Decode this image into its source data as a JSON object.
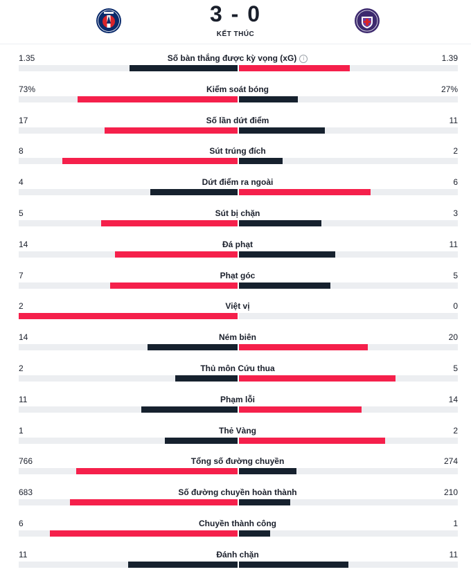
{
  "match": {
    "score": "3 - 0",
    "status": "KẾT THÚC"
  },
  "colors": {
    "winner": "#f5204b",
    "loser": "#16212e",
    "track": "#eceef1"
  },
  "stats": [
    {
      "label": "Số bàn thắng được kỳ vọng (xG)",
      "home": "1.35",
      "away": "1.39",
      "home_value": 1.35,
      "away_value": 1.39,
      "info": true
    },
    {
      "label": "Kiểm soát bóng",
      "home": "73%",
      "away": "27%",
      "home_value": 73,
      "away_value": 27
    },
    {
      "label": "Số lần dứt điểm",
      "home": "17",
      "away": "11",
      "home_value": 17,
      "away_value": 11
    },
    {
      "label": "Sút trúng đích",
      "home": "8",
      "away": "2",
      "home_value": 8,
      "away_value": 2
    },
    {
      "label": "Dứt điểm ra ngoài",
      "home": "4",
      "away": "6",
      "home_value": 4,
      "away_value": 6
    },
    {
      "label": "Sút bị chặn",
      "home": "5",
      "away": "3",
      "home_value": 5,
      "away_value": 3
    },
    {
      "label": "Đá phạt",
      "home": "14",
      "away": "11",
      "home_value": 14,
      "away_value": 11
    },
    {
      "label": "Phạt góc",
      "home": "7",
      "away": "5",
      "home_value": 7,
      "away_value": 5
    },
    {
      "label": "Việt vị",
      "home": "2",
      "away": "0",
      "home_value": 2,
      "away_value": 0
    },
    {
      "label": "Ném biên",
      "home": "14",
      "away": "20",
      "home_value": 14,
      "away_value": 20
    },
    {
      "label": "Thủ môn Cứu thua",
      "home": "2",
      "away": "5",
      "home_value": 2,
      "away_value": 5
    },
    {
      "label": "Phạm lỗi",
      "home": "11",
      "away": "14",
      "home_value": 11,
      "away_value": 14
    },
    {
      "label": "Thẻ Vàng",
      "home": "1",
      "away": "2",
      "home_value": 1,
      "away_value": 2
    },
    {
      "label": "Tổng số đường chuyền",
      "home": "766",
      "away": "274",
      "home_value": 766,
      "away_value": 274
    },
    {
      "label": "Số đường chuyền hoàn thành",
      "home": "683",
      "away": "210",
      "home_value": 683,
      "away_value": 210
    },
    {
      "label": "Chuyền thành công",
      "home": "6",
      "away": "1",
      "home_value": 6,
      "away_value": 1
    },
    {
      "label": "Đánh chặn",
      "home": "11",
      "away": "11",
      "home_value": 11,
      "away_value": 11
    }
  ]
}
